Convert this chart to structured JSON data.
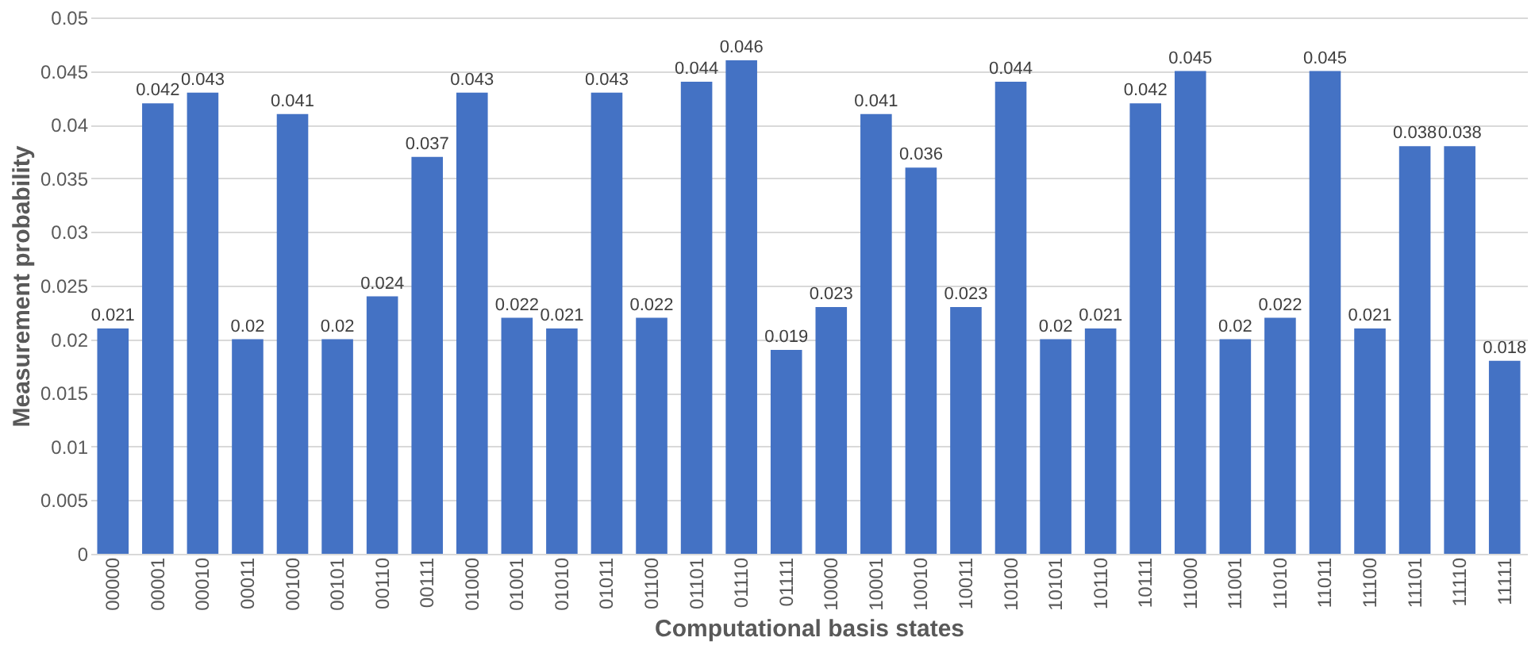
{
  "chart_data": {
    "type": "bar",
    "xlabel": "Computational basis states",
    "ylabel": "Measurement probability",
    "categories": [
      "00000",
      "00001",
      "00010",
      "00011",
      "00100",
      "00101",
      "00110",
      "00111",
      "01000",
      "01001",
      "01010",
      "01011",
      "01100",
      "01101",
      "01110",
      "01111",
      "10000",
      "10001",
      "10010",
      "10011",
      "10100",
      "10101",
      "10110",
      "10111",
      "11000",
      "11001",
      "11010",
      "11011",
      "11100",
      "11101",
      "11110",
      "11111"
    ],
    "values": [
      0.021,
      0.042,
      0.043,
      0.02,
      0.041,
      0.02,
      0.024,
      0.037,
      0.043,
      0.022,
      0.021,
      0.043,
      0.022,
      0.044,
      0.046,
      0.019,
      0.023,
      0.041,
      0.036,
      0.023,
      0.044,
      0.02,
      0.021,
      0.042,
      0.045,
      0.02,
      0.022,
      0.045,
      0.021,
      0.038,
      0.038,
      0.018
    ],
    "color": "#4472c4",
    "ylim": [
      0,
      0.05
    ],
    "yticks": [
      0,
      0.005,
      0.01,
      0.015,
      0.02,
      0.025,
      0.03,
      0.035,
      0.04,
      0.045,
      0.05
    ],
    "grid": "y",
    "data_labels": true
  }
}
